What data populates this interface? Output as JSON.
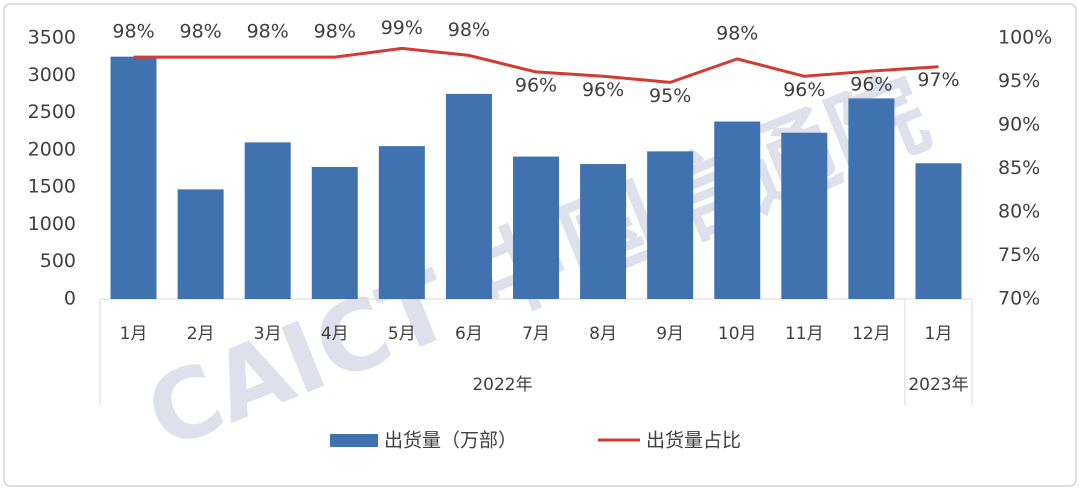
{
  "chart_data": {
    "type": "bar-line",
    "watermark": "CAICT 中国信通院",
    "categories": [
      "1月",
      "2月",
      "3月",
      "4月",
      "5月",
      "6月",
      "7月",
      "8月",
      "9月",
      "10月",
      "11月",
      "12月",
      "1月"
    ],
    "groups": [
      {
        "name": "2022年",
        "count": 12
      },
      {
        "name": "2023年",
        "count": 1
      }
    ],
    "series": [
      {
        "name": "出货量（万部）",
        "type": "bar",
        "color": "#3f72af",
        "values": [
          3250,
          1470,
          2100,
          1770,
          2050,
          2750,
          1910,
          1810,
          1980,
          2380,
          2230,
          2690,
          1820
        ]
      },
      {
        "name": "出货量占比",
        "type": "line",
        "axis": "y2",
        "color": "#d23a32",
        "values": [
          97.8,
          97.8,
          97.8,
          97.8,
          98.8,
          98.0,
          96.1,
          95.6,
          94.9,
          97.6,
          95.6,
          96.2,
          96.7
        ],
        "value_labels": [
          "98%",
          "98%",
          "98%",
          "98%",
          "99%",
          "98%",
          "96%",
          "96%",
          "95%",
          "98%",
          "96%",
          "96%",
          "97%"
        ]
      }
    ],
    "ylim": [
      0,
      3500
    ],
    "yticks": [
      0,
      500,
      1000,
      1500,
      2000,
      2500,
      3000,
      3500
    ],
    "y2lim": [
      70,
      100
    ],
    "y2ticks": [
      {
        "value": 70,
        "label": "70%"
      },
      {
        "value": 75,
        "label": "75%"
      },
      {
        "value": 80,
        "label": "80%"
      },
      {
        "value": 85,
        "label": "85%"
      },
      {
        "value": 90,
        "label": "90%"
      },
      {
        "value": 95,
        "label": "95%"
      },
      {
        "value": 100,
        "label": "100%"
      }
    ],
    "grid": false
  }
}
